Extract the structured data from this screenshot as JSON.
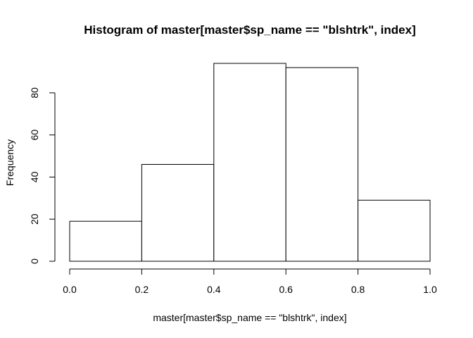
{
  "chart_data": {
    "type": "bar",
    "title": "Histogram of master[master$sp_name == \"blshtrk\", index]",
    "xlabel": "master[master$sp_name == \"blshtrk\", index]",
    "ylabel": "Frequency",
    "bins": [
      {
        "start": 0.0,
        "end": 0.2,
        "count": 19
      },
      {
        "start": 0.2,
        "end": 0.4,
        "count": 46
      },
      {
        "start": 0.4,
        "end": 0.6,
        "count": 94
      },
      {
        "start": 0.6,
        "end": 0.8,
        "count": 92
      },
      {
        "start": 0.8,
        "end": 1.0,
        "count": 29
      }
    ],
    "xlim": [
      0.0,
      1.0
    ],
    "ylim": [
      0,
      94
    ],
    "xticks": [
      "0.0",
      "0.2",
      "0.4",
      "0.6",
      "0.8",
      "1.0"
    ],
    "yticks": [
      "0",
      "20",
      "40",
      "60",
      "80"
    ],
    "grid": false
  }
}
